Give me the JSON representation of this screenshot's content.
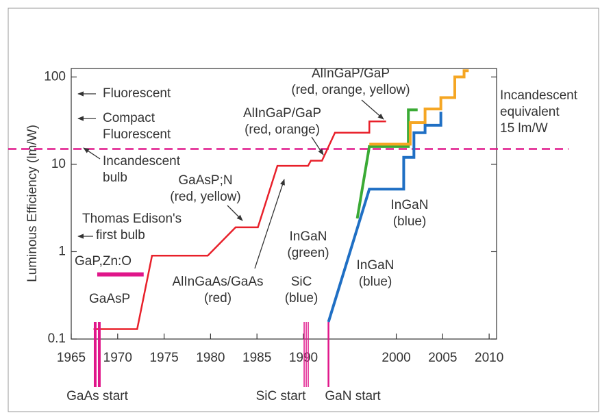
{
  "chart_data": {
    "type": "line",
    "y_label": "Luminous Efficiency (lm/W)",
    "xlim": [
      1965,
      2010.8
    ],
    "xticks": [
      1965,
      1970,
      1975,
      1980,
      1985,
      1990,
      2000,
      2005,
      2010
    ],
    "ylim": [
      0.1,
      125
    ],
    "yticks": [
      0.1,
      1,
      10,
      100
    ],
    "log_y": true,
    "series": [
      {
        "color": "#e8202a",
        "x": [
          1967.4,
          1972.1,
          1973.7,
          1979.7,
          1982.7,
          1985.1,
          1987.2,
          1990.5,
          1990.8,
          1992.0,
          1993.4,
          1997.1,
          1997.1,
          1998.9
        ],
        "values": [
          0.13,
          0.13,
          0.9,
          0.9,
          1.9,
          1.9,
          9.6,
          9.6,
          11,
          11,
          23,
          23,
          31,
          31
        ]
      },
      {
        "color": "#3aaa35",
        "x": [
          1995.8,
          1997.1,
          2001.3,
          2001.3,
          2002.3
        ],
        "values": [
          2.4,
          16,
          16,
          42,
          42
        ]
      },
      {
        "color": "#f5a623",
        "x": [
          1997.1,
          2001.5,
          2001.5,
          2003.1,
          2003.1,
          2004.8,
          2004.8,
          2006.3,
          2006.3,
          2007.3,
          2007.3,
          2007.8
        ],
        "values": [
          17,
          17,
          30,
          30,
          43,
          43,
          58,
          58,
          100,
          100,
          118,
          118
        ]
      },
      {
        "color": "#1f6fc4",
        "x": [
          1992.7,
          1997.1,
          2000.8,
          2000.8,
          2001.9,
          2001.9,
          2003.1,
          2003.1,
          2004.8,
          2004.8
        ],
        "values": [
          0.157,
          5.2,
          5.2,
          12,
          12,
          23,
          23,
          28,
          28,
          40
        ]
      }
    ],
    "reference_line": {
      "value": 15,
      "color": "#e0168a",
      "lines": [
        "Incandescent",
        "equivalent",
        "15 lm/W"
      ]
    },
    "gap_bar": {
      "x": [
        1967.8,
        1972.8
      ],
      "value": 0.55,
      "color": "#e0168a"
    },
    "start_markers": [
      {
        "x": 1967.8,
        "label": "GaAs start"
      },
      {
        "x": 1990.3,
        "label": "SiC start"
      },
      {
        "x": 1992.7,
        "label": "GaN start"
      }
    ],
    "annotations": [
      {
        "lines": [
          "Fluorescent"
        ]
      },
      {
        "lines": [
          "Compact",
          "Fluorescent"
        ]
      },
      {
        "lines": [
          "Incandescent",
          "bulb"
        ]
      },
      {
        "lines": [
          "Thomas Edison's",
          "first bulb"
        ]
      },
      {
        "lines": [
          "GaP,Zn:O"
        ]
      },
      {
        "lines": [
          "GaAsP"
        ]
      },
      {
        "lines": [
          "GaAsP;N",
          "(red, yellow)"
        ]
      },
      {
        "lines": [
          "AlInGaAs/GaAs",
          "(red)"
        ]
      },
      {
        "lines": [
          "AlInGaP/GaP",
          "(red, orange)"
        ]
      },
      {
        "lines": [
          "AlInGaP/GaP",
          "(red, orange, yellow)"
        ]
      },
      {
        "lines": [
          "SiC",
          "(blue)"
        ]
      },
      {
        "lines": [
          "InGaN",
          "(green)"
        ]
      },
      {
        "lines": [
          "InGaN",
          "(blue)"
        ]
      },
      {
        "lines": [
          "InGaN",
          "(blue)"
        ]
      }
    ]
  }
}
